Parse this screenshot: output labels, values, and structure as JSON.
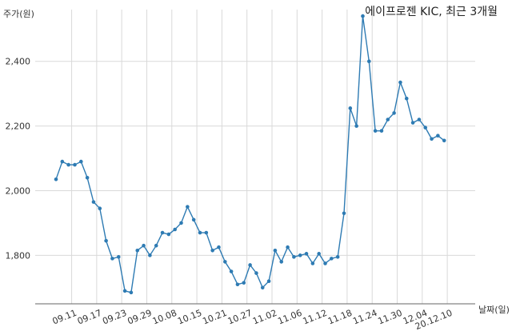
{
  "chart_data": {
    "type": "line",
    "title": "에이프로젠 KIC, 최근 3개월",
    "ylabel": "주가(원)",
    "xlabel": "날짜(일)",
    "ylim": [
      1650,
      2560
    ],
    "yticks": [
      1800,
      2000,
      2200,
      2400
    ],
    "ytick_labels": [
      "1,800",
      "2,000",
      "2,200",
      "2,400"
    ],
    "grid": true,
    "xtick_labels": [
      "09.11",
      "09.17",
      "09.23",
      "09.29",
      "10.08",
      "10.15",
      "10.21",
      "10.27",
      "11.02",
      "11.06",
      "11.12",
      "11.18",
      "11.24",
      "11.30",
      "12.04",
      "20.12.10"
    ],
    "xtick_positions": [
      2.5,
      6.5,
      10.5,
      14.5,
      18.5,
      22.5,
      26.5,
      30.5,
      34.5,
      38.5,
      42.5,
      46.5,
      50.5,
      54.5,
      58.5,
      62.5
    ],
    "series": [
      {
        "color": "#2e7bb3",
        "values": [
          2035,
          2090,
          2080,
          2080,
          2090,
          2040,
          1965,
          1945,
          1845,
          1790,
          1795,
          1690,
          1685,
          1815,
          1830,
          1800,
          1830,
          1870,
          1865,
          1880,
          1900,
          1950,
          1910,
          1870,
          1870,
          1815,
          1825,
          1780,
          1750,
          1710,
          1715,
          1770,
          1745,
          1700,
          1720,
          1815,
          1780,
          1825,
          1795,
          1800,
          1805,
          1775,
          1805,
          1775,
          1790,
          1795,
          1930,
          2255,
          2200,
          2540,
          2400,
          2185,
          2185,
          2220,
          2240,
          2335,
          2285,
          2210,
          2220,
          2195,
          2160,
          2170,
          2155
        ]
      }
    ]
  }
}
